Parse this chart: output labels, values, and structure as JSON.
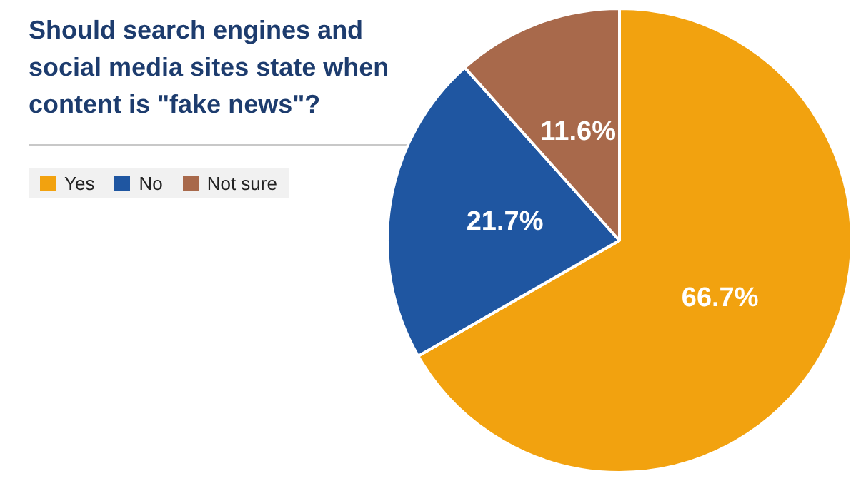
{
  "chart_data": {
    "type": "pie",
    "title": "Should search engines and social media sites state when content is \"fake news\"?",
    "categories": [
      "Yes",
      "No",
      "Not sure"
    ],
    "values": [
      66.7,
      21.7,
      11.6
    ],
    "colors": [
      "#f2a20f",
      "#1f56a1",
      "#a8694b"
    ],
    "value_labels": [
      "66.7%",
      "21.7%",
      "11.6%"
    ],
    "legend": "top left"
  }
}
